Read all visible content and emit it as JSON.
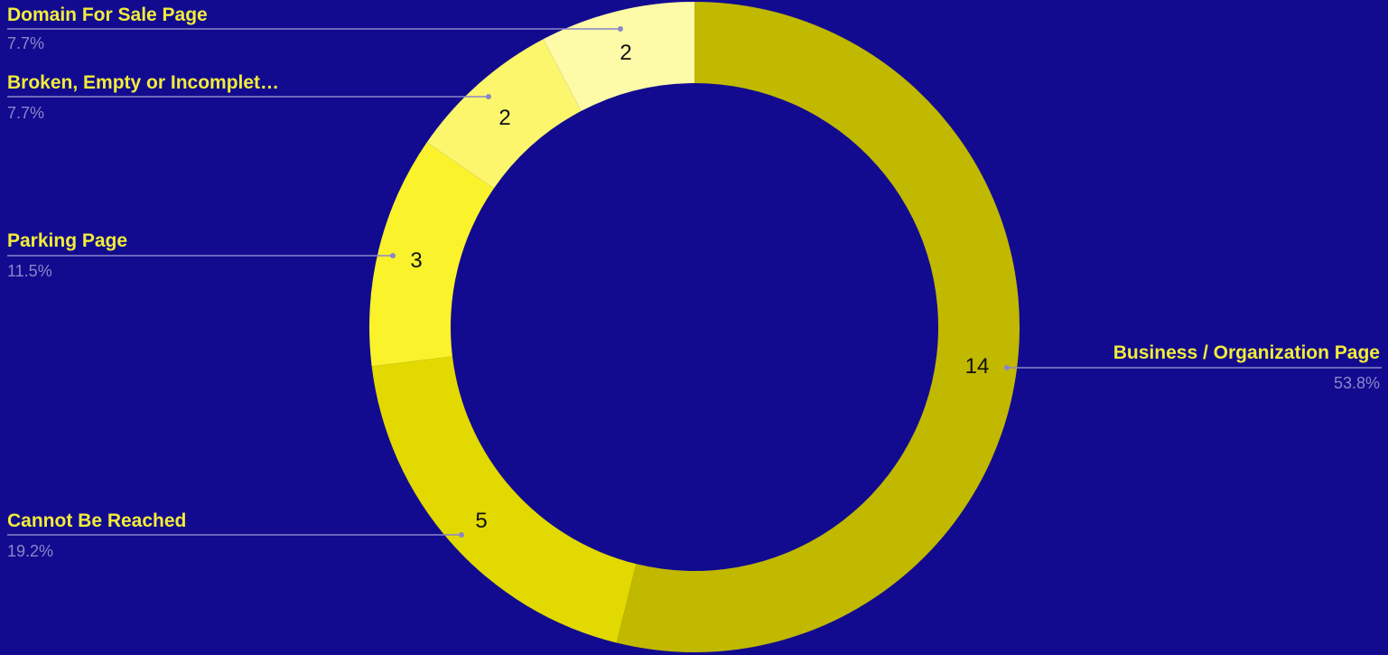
{
  "chart_data": {
    "type": "pie",
    "donut": true,
    "title": "",
    "total": 26,
    "slices": [
      {
        "label": "Business / Organization Page",
        "value": 14,
        "percent": "53.8%",
        "color": "#c1b800"
      },
      {
        "label": "Cannot Be Reached",
        "value": 5,
        "percent": "19.2%",
        "color": "#e1d900"
      },
      {
        "label": "Parking Page",
        "value": 3,
        "percent": "11.5%",
        "color": "#faf22a"
      },
      {
        "label": "Broken, Empty or Incomplet…",
        "value": 2,
        "percent": "7.7%",
        "color": "#fbf66c"
      },
      {
        "label": "Domain For Sale Page",
        "value": 2,
        "percent": "7.7%",
        "color": "#fdfaa8"
      }
    ],
    "legend": "none",
    "label_position": "outside-with-leader-lines",
    "colors": {
      "background": "#120b8f",
      "label_text": "#f2ec3a",
      "percent_text": "#8a86c9",
      "value_text": "#111111"
    }
  }
}
